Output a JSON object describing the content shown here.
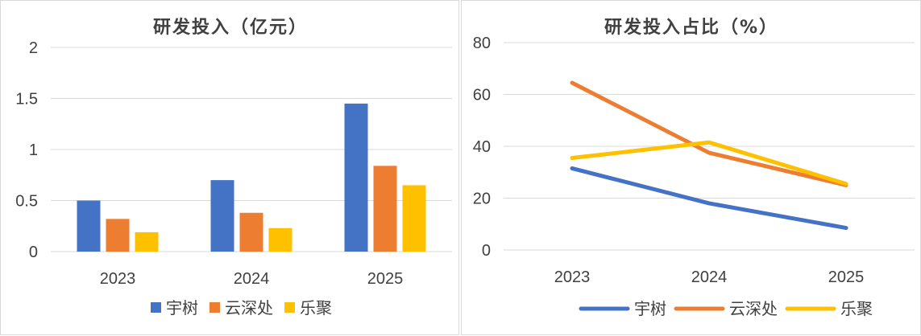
{
  "chart_data": [
    {
      "type": "bar",
      "title": "研发投入（亿元）",
      "categories": [
        "2023",
        "2024",
        "2025"
      ],
      "y_ticks": [
        "0",
        "0.5",
        "1",
        "1.5",
        "2"
      ],
      "ylim": [
        0,
        2
      ],
      "grid": true,
      "legend_position": "bottom",
      "series": [
        {
          "name": "宇树",
          "color": "#4472C4",
          "values": [
            0.5,
            0.7,
            1.45
          ]
        },
        {
          "name": "云深处",
          "color": "#ED7D31",
          "values": [
            0.32,
            0.38,
            0.84
          ]
        },
        {
          "name": "乐聚",
          "color": "#FFC000",
          "values": [
            0.19,
            0.23,
            0.65
          ]
        }
      ]
    },
    {
      "type": "line",
      "title": "研发投入占比（%）",
      "categories": [
        "2023",
        "2024",
        "2025"
      ],
      "y_ticks": [
        "0",
        "20",
        "40",
        "60",
        "80"
      ],
      "ylim": [
        0,
        80
      ],
      "grid": true,
      "legend_position": "bottom",
      "series": [
        {
          "name": "宇树",
          "color": "#4472C4",
          "values": [
            31.5,
            18.0,
            8.5
          ]
        },
        {
          "name": "云深处",
          "color": "#ED7D31",
          "values": [
            64.5,
            37.5,
            25.0
          ]
        },
        {
          "name": "乐聚",
          "color": "#FFC000",
          "values": [
            35.5,
            41.5,
            25.5
          ]
        }
      ]
    }
  ]
}
